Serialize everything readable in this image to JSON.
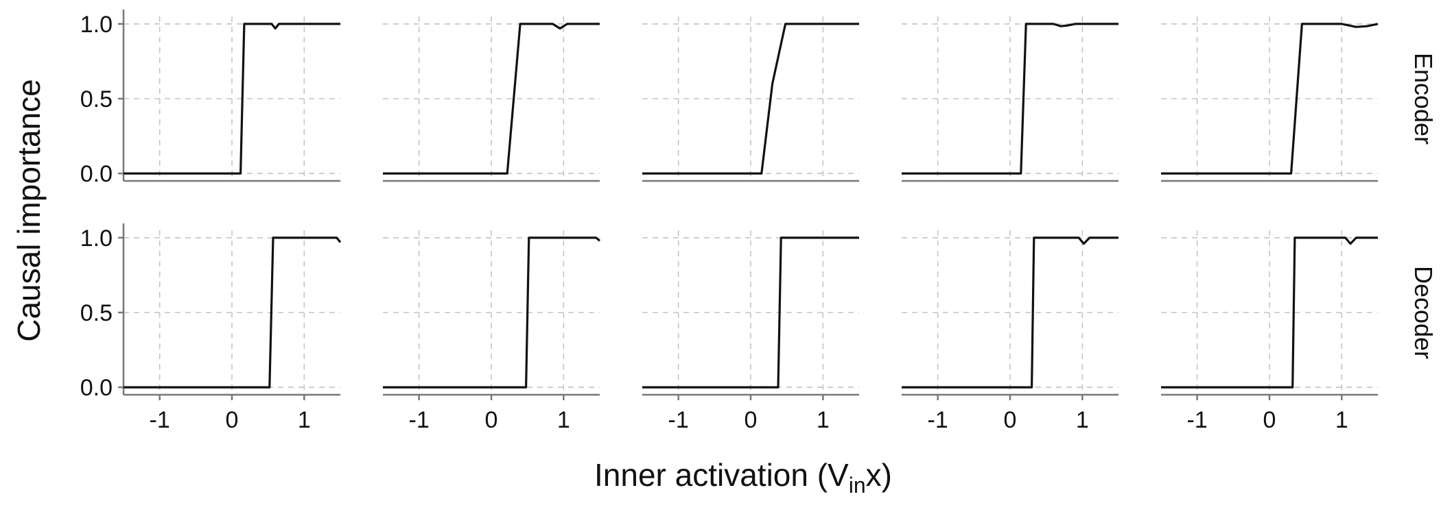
{
  "chart_data": {
    "type": "line",
    "ylabel": "Causal importance",
    "xlabel": {
      "main": "Inner activation (V",
      "sub": "in",
      "tail": "x)"
    },
    "xlim": [
      -1.5,
      1.5
    ],
    "ylim": [
      -0.05,
      1.05
    ],
    "x_ticks": [
      -1,
      0,
      1
    ],
    "x_tick_labels": [
      "-1",
      "0",
      "1"
    ],
    "y_ticks": [
      0,
      0.5,
      1
    ],
    "y_tick_labels": [
      "0.0",
      "0.5",
      "1.0"
    ],
    "grid": true,
    "rows": [
      "Encoder",
      "Decoder"
    ],
    "panels": [
      {
        "row": "Encoder",
        "col": 1,
        "x": [
          -1.5,
          0.12,
          0.17,
          0.55,
          0.6,
          0.65,
          1.5
        ],
        "y": [
          0,
          0,
          1,
          1,
          0.97,
          1,
          1
        ]
      },
      {
        "row": "Encoder",
        "col": 2,
        "x": [
          -1.5,
          0.22,
          0.4,
          0.85,
          0.95,
          1.05,
          1.5
        ],
        "y": [
          0,
          0,
          1,
          1,
          0.97,
          1,
          1
        ]
      },
      {
        "row": "Encoder",
        "col": 3,
        "x": [
          -1.5,
          0.15,
          0.3,
          0.48,
          1.5
        ],
        "y": [
          0,
          0,
          0.6,
          1,
          1
        ]
      },
      {
        "row": "Encoder",
        "col": 4,
        "x": [
          -1.5,
          0.15,
          0.22,
          0.6,
          0.7,
          0.8,
          0.9,
          1.5
        ],
        "y": [
          0,
          0,
          1,
          1,
          0.985,
          0.99,
          1,
          1
        ]
      },
      {
        "row": "Encoder",
        "col": 5,
        "x": [
          -1.5,
          0.3,
          0.45,
          1.0,
          1.2,
          1.35,
          1.5
        ],
        "y": [
          0,
          0,
          1,
          1,
          0.98,
          0.985,
          1
        ]
      },
      {
        "row": "Decoder",
        "col": 1,
        "x": [
          -1.5,
          0.52,
          0.57,
          1.45,
          1.5
        ],
        "y": [
          0,
          0,
          1,
          1,
          0.97
        ]
      },
      {
        "row": "Decoder",
        "col": 2,
        "x": [
          -1.5,
          0.48,
          0.52,
          1.45,
          1.5
        ],
        "y": [
          0,
          0,
          1,
          1,
          0.98
        ]
      },
      {
        "row": "Decoder",
        "col": 3,
        "x": [
          -1.5,
          0.38,
          0.42,
          1.5
        ],
        "y": [
          0,
          0,
          1,
          1
        ]
      },
      {
        "row": "Decoder",
        "col": 4,
        "x": [
          -1.5,
          0.3,
          0.33,
          0.95,
          1.02,
          1.1,
          1.5
        ],
        "y": [
          0,
          0,
          1,
          1,
          0.96,
          1,
          1
        ]
      },
      {
        "row": "Decoder",
        "col": 5,
        "x": [
          -1.5,
          0.32,
          0.35,
          1.05,
          1.12,
          1.2,
          1.5
        ],
        "y": [
          0,
          0,
          1,
          1,
          0.96,
          1,
          1
        ]
      }
    ]
  }
}
